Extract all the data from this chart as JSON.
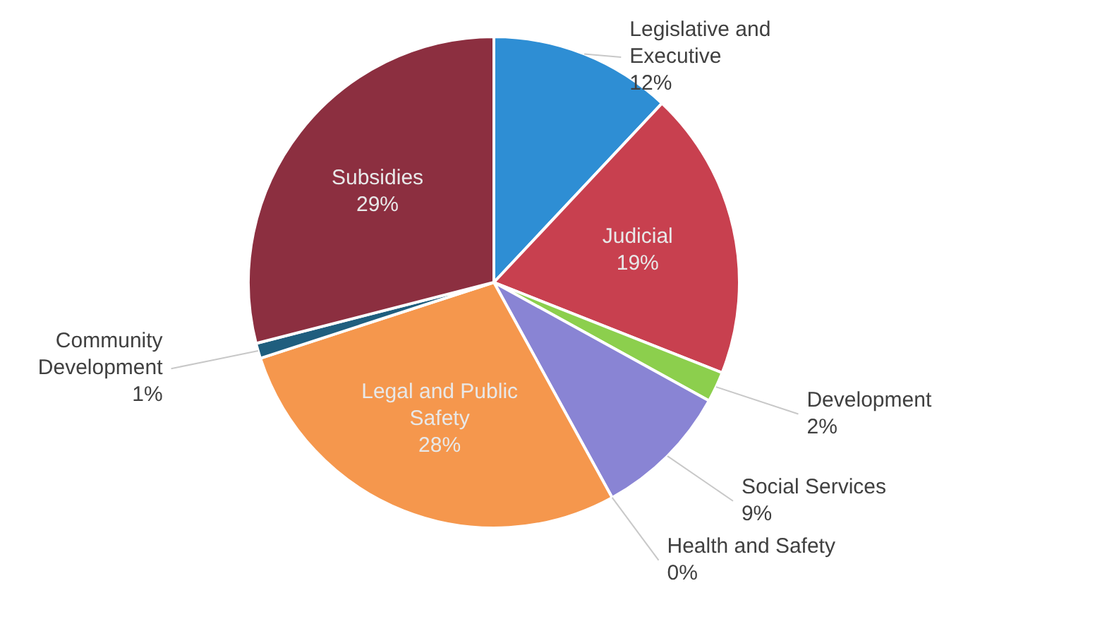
{
  "chart_data": {
    "type": "pie",
    "categories": [
      "Legislative and Executive",
      "Judicial",
      "Development",
      "Social Services",
      "Health and Safety",
      "Legal and Public Safety",
      "Community Development",
      "Subsidies"
    ],
    "values": [
      12,
      19,
      2,
      9,
      0,
      28,
      1,
      29
    ],
    "value_labels": [
      "12%",
      "19%",
      "2%",
      "9%",
      "0%",
      "28%",
      "1%",
      "29%"
    ],
    "colors": [
      "#2e8ed4",
      "#c8404f",
      "#8ccf4d",
      "#8984d4",
      "#6e7fc0",
      "#f5974d",
      "#1f5e7e",
      "#8c2f40"
    ],
    "legend": false
  }
}
